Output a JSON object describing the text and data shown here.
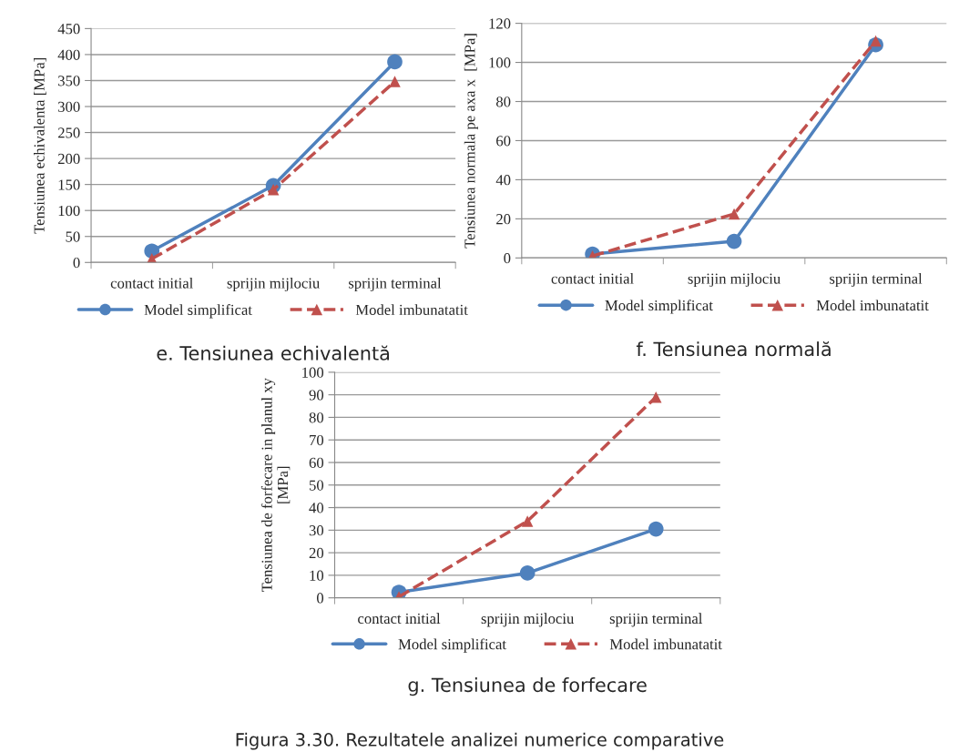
{
  "chart_data": [
    {
      "type": "line",
      "title": "e. Tensiunea echivalentă",
      "ylabel": "Tensiunea echivalenta [MPa]",
      "categories": [
        "contact initial",
        "sprijin mijlociu",
        "sprijin terminal"
      ],
      "ylim": [
        0,
        450
      ],
      "yticks": [
        0,
        50,
        100,
        150,
        200,
        250,
        300,
        350,
        400,
        450
      ],
      "grid": "y",
      "legend": "bottom",
      "series": [
        {
          "name": "Model simplificat",
          "color": "#4f81bd",
          "marker": "circle",
          "line_style": "solid",
          "values": [
            22,
            148,
            386
          ]
        },
        {
          "name": "Model imbunatatit",
          "color": "#c0504d",
          "marker": "triangle",
          "line_style": "dashed",
          "values": [
            7,
            140,
            348
          ]
        }
      ]
    },
    {
      "type": "line",
      "title": "f. Tensiunea normală",
      "ylabel": "Tensiunea normala pe axa x  [MPa]",
      "categories": [
        "contact initial",
        "sprijin mijlociu",
        "sprijin terminal"
      ],
      "ylim": [
        0,
        120
      ],
      "yticks": [
        0,
        20,
        40,
        60,
        80,
        100,
        120
      ],
      "grid": "y",
      "legend": "bottom",
      "series": [
        {
          "name": "Model simplificat",
          "color": "#4f81bd",
          "marker": "circle",
          "line_style": "solid",
          "values": [
            2,
            8.5,
            109
          ]
        },
        {
          "name": "Model imbunatatit",
          "color": "#c0504d",
          "marker": "triangle",
          "line_style": "dashed",
          "values": [
            1,
            22.5,
            111
          ]
        }
      ]
    },
    {
      "type": "line",
      "title": "g. Tensiunea de forfecare",
      "ylabel": "Tensiunea de forfecare in planul xy\n[MPa]",
      "categories": [
        "contact initial",
        "sprijin mijlociu",
        "sprijin terminal"
      ],
      "ylim": [
        0,
        100
      ],
      "yticks": [
        0,
        10,
        20,
        30,
        40,
        50,
        60,
        70,
        80,
        90,
        100
      ],
      "grid": "y",
      "legend": "bottom",
      "annotations": [
        "Figura 3.30. Rezultatele analizei numerice comparative"
      ],
      "series": [
        {
          "name": "Model simplificat",
          "color": "#4f81bd",
          "marker": "circle",
          "line_style": "solid",
          "values": [
            2.5,
            11,
            30.5
          ]
        },
        {
          "name": "Model imbunatatit",
          "color": "#c0504d",
          "marker": "triangle",
          "line_style": "dashed",
          "values": [
            0.5,
            34,
            89
          ]
        }
      ]
    }
  ]
}
